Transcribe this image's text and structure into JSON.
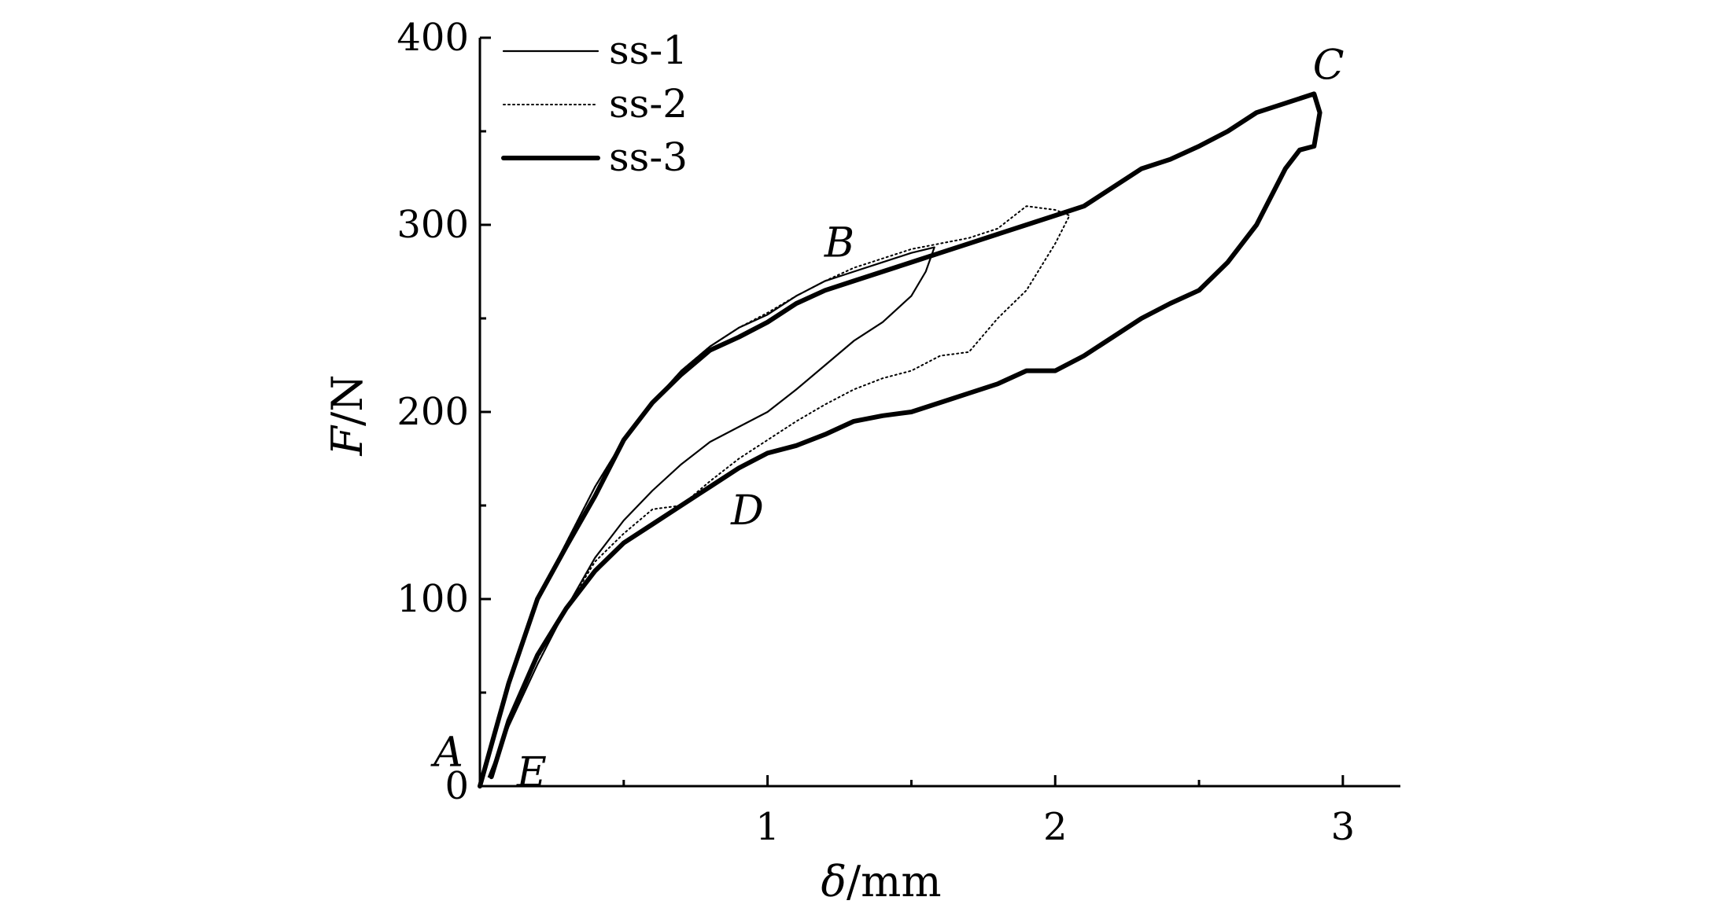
{
  "chart_data": {
    "type": "line",
    "xlabel": {
      "symbol": "δ",
      "unit": "/mm"
    },
    "ylabel": {
      "symbol": "F",
      "unit": "/N"
    },
    "xlim": [
      0,
      3.2
    ],
    "ylim": [
      0,
      400
    ],
    "xticks": [
      1,
      2,
      3
    ],
    "yticks": [
      0,
      100,
      200,
      300,
      400
    ],
    "xtick_labels": [
      "1",
      "2",
      "3"
    ],
    "ytick_labels": [
      "0",
      "100",
      "200",
      "300",
      "400"
    ],
    "grid": false,
    "legend_position": "top-left",
    "series": [
      {
        "name": "ss-1",
        "style": "thin-solid",
        "x": [
          0,
          0.1,
          0.2,
          0.3,
          0.4,
          0.5,
          0.6,
          0.7,
          0.8,
          0.9,
          1.0,
          1.1,
          1.2,
          1.3,
          1.4,
          1.5,
          1.58,
          1.55,
          1.5,
          1.4,
          1.3,
          1.2,
          1.1,
          1.0,
          0.9,
          0.8,
          0.7,
          0.6,
          0.5,
          0.4,
          0.3,
          0.2,
          0.1,
          0.03
        ],
        "y": [
          0,
          55,
          100,
          130,
          160,
          185,
          205,
          222,
          235,
          245,
          252,
          262,
          270,
          275,
          280,
          285,
          288,
          275,
          262,
          248,
          238,
          225,
          212,
          200,
          192,
          184,
          172,
          158,
          142,
          122,
          95,
          65,
          32,
          5
        ]
      },
      {
        "name": "ss-2",
        "style": "dotted",
        "x": [
          0,
          0.1,
          0.2,
          0.3,
          0.4,
          0.5,
          0.6,
          0.7,
          0.8,
          0.9,
          1.0,
          1.1,
          1.2,
          1.3,
          1.4,
          1.5,
          1.6,
          1.7,
          1.8,
          1.9,
          2.0,
          2.05,
          2.0,
          1.9,
          1.8,
          1.7,
          1.6,
          1.5,
          1.4,
          1.3,
          1.2,
          1.1,
          1.0,
          0.9,
          0.8,
          0.7,
          0.6,
          0.5,
          0.4,
          0.3,
          0.2,
          0.1,
          0.04
        ],
        "y": [
          0,
          55,
          100,
          130,
          160,
          185,
          205,
          222,
          235,
          245,
          253,
          262,
          270,
          277,
          282,
          287,
          290,
          293,
          298,
          310,
          308,
          305,
          290,
          265,
          250,
          232,
          230,
          222,
          218,
          212,
          204,
          195,
          185,
          175,
          163,
          150,
          148,
          135,
          120,
          95,
          68,
          35,
          8
        ]
      },
      {
        "name": "ss-3",
        "style": "thick-solid",
        "x": [
          0,
          0.1,
          0.2,
          0.3,
          0.4,
          0.5,
          0.6,
          0.7,
          0.8,
          0.9,
          1.0,
          1.1,
          1.2,
          1.3,
          1.4,
          1.5,
          1.6,
          1.7,
          1.8,
          1.9,
          2.0,
          2.1,
          2.2,
          2.3,
          2.4,
          2.5,
          2.6,
          2.7,
          2.8,
          2.9,
          2.92,
          2.9,
          2.85,
          2.8,
          2.7,
          2.6,
          2.5,
          2.4,
          2.3,
          2.2,
          2.1,
          2.0,
          1.9,
          1.8,
          1.7,
          1.6,
          1.5,
          1.4,
          1.3,
          1.2,
          1.1,
          1.0,
          0.9,
          0.8,
          0.7,
          0.6,
          0.5,
          0.4,
          0.3,
          0.2,
          0.1,
          0.04
        ],
        "y": [
          0,
          55,
          100,
          128,
          155,
          185,
          205,
          220,
          233,
          240,
          248,
          258,
          265,
          270,
          275,
          280,
          285,
          290,
          295,
          300,
          305,
          310,
          320,
          330,
          335,
          342,
          350,
          360,
          365,
          370,
          360,
          342,
          340,
          330,
          300,
          280,
          265,
          258,
          250,
          240,
          230,
          222,
          222,
          215,
          210,
          205,
          200,
          198,
          195,
          188,
          182,
          178,
          170,
          160,
          150,
          140,
          130,
          115,
          95,
          70,
          35,
          5
        ]
      }
    ],
    "annotations": [
      {
        "label": "A",
        "x": 0.0,
        "y": 15
      },
      {
        "label": "B",
        "x": 1.25,
        "y": 283
      },
      {
        "label": "C",
        "x": 2.95,
        "y": 378
      },
      {
        "label": "D",
        "x": 0.93,
        "y": 140
      },
      {
        "label": "E",
        "x": 0.18,
        "y": 5
      }
    ]
  }
}
